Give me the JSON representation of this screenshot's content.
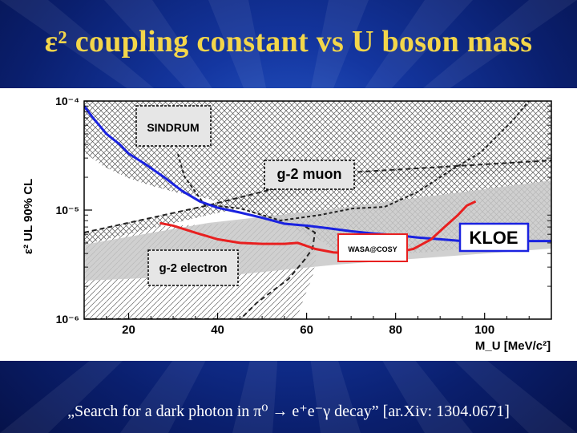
{
  "slide": {
    "title": "ε² coupling constant vs U boson mass",
    "caption": "„Search for a dark photon in π⁰ → e⁺e⁻γ decay” [ar.Xiv: 1304.0671]"
  },
  "chart_data": {
    "type": "line",
    "title": "",
    "xlabel": "M_U [MeV/c²]",
    "ylabel": "ε² UL 90% CL",
    "x_range": [
      10,
      115
    ],
    "y_range": [
      1e-06,
      0.0001
    ],
    "y_scale": "log",
    "x_ticks": [
      {
        "v": 20,
        "label": "20"
      },
      {
        "v": 40,
        "label": "40"
      },
      {
        "v": 60,
        "label": "60"
      },
      {
        "v": 80,
        "label": "80"
      },
      {
        "v": 100,
        "label": "100"
      }
    ],
    "y_ticks": [
      {
        "v": 0.0001,
        "label": "10⁻⁴"
      },
      {
        "v": 1e-05,
        "label": "10⁻⁵"
      },
      {
        "v": 1e-06,
        "label": "10⁻⁶"
      }
    ],
    "series": [
      {
        "name": "KLOE",
        "color": "#1a22e0",
        "points": [
          [
            10,
            9e-05
          ],
          [
            12,
            7e-05
          ],
          [
            15,
            5e-05
          ],
          [
            18,
            4e-05
          ],
          [
            20,
            3.3e-05
          ],
          [
            24,
            2.6e-05
          ],
          [
            28,
            2e-05
          ],
          [
            32,
            1.5e-05
          ],
          [
            36,
            1.2e-05
          ],
          [
            40,
            1.05e-05
          ],
          [
            45,
            9.5e-06
          ],
          [
            50,
            8.5e-06
          ],
          [
            55,
            7.5e-06
          ],
          [
            60,
            7.2e-06
          ],
          [
            65,
            6.8e-06
          ],
          [
            70,
            6.4e-06
          ],
          [
            75,
            6.1e-06
          ],
          [
            80,
            5.9e-06
          ],
          [
            85,
            5.6e-06
          ],
          [
            90,
            5.4e-06
          ],
          [
            95,
            5.2e-06
          ],
          [
            100,
            5.2e-06
          ],
          [
            105,
            5.2e-06
          ],
          [
            110,
            5.2e-06
          ],
          [
            115,
            5.2e-06
          ]
        ]
      },
      {
        "name": "WASA@COSY",
        "color": "#e82020",
        "points": [
          [
            27,
            7.6e-06
          ],
          [
            30,
            7.2e-06
          ],
          [
            35,
            6.2e-06
          ],
          [
            40,
            5.4e-06
          ],
          [
            45,
            5e-06
          ],
          [
            50,
            4.9e-06
          ],
          [
            55,
            4.9e-06
          ],
          [
            58,
            5e-06
          ],
          [
            62,
            4.4e-06
          ],
          [
            66,
            4.1e-06
          ],
          [
            70,
            4e-06
          ],
          [
            75,
            4e-06
          ],
          [
            80,
            4.1e-06
          ],
          [
            84,
            4.4e-06
          ],
          [
            88,
            5.4e-06
          ],
          [
            91,
            7e-06
          ],
          [
            94,
            9e-06
          ],
          [
            96,
            1.1e-05
          ],
          [
            98,
            1.2e-05
          ]
        ]
      }
    ],
    "regions": [
      {
        "label": "SINDRUM"
      },
      {
        "label": "g-2 muon"
      },
      {
        "label": "g-2 electron"
      }
    ],
    "legend_labels": [
      "KLOE",
      "WASA@COSY"
    ],
    "grid": false
  },
  "colors": {
    "title": "#f3d64a",
    "caption": "#ffffff",
    "kloe": "#1a22e0",
    "wasa": "#e82020",
    "band": "#c8c8c8"
  }
}
